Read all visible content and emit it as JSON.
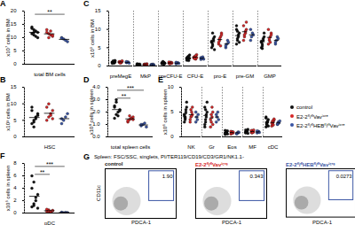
{
  "chart_data": [
    {
      "type": "strip",
      "panel": "A",
      "y_label": "x10⁷ cells in BM",
      "categories": [
        "total BM cells"
      ],
      "ylim": [
        0,
        20
      ],
      "yticks": [
        0,
        5,
        10,
        15,
        20
      ],
      "series": [
        {
          "name": "control",
          "color": "#111111",
          "values": [
            [
              14,
              13,
              12.5,
              12,
              11.5,
              11,
              10.5,
              10,
              13.5,
              12
            ]
          ]
        },
        {
          "name": "E2-2ᶠˡ/ᶠˡVavⁱᶜʳᵉ",
          "color": "#d62728",
          "values": [
            [
              12,
              11.5,
              11,
              10.5,
              13,
              10,
              12.5,
              11
            ]
          ]
        },
        {
          "name": "E2-2ᶠˡ/ᶠˡHEBᶠˡ/ᶠˡVavⁱᶜʳᵉ",
          "color": "#3a55a4",
          "values": [
            [
              10,
              9.5,
              9,
              8.5,
              9.8
            ]
          ]
        }
      ],
      "annotations": [
        {
          "text": "**",
          "groups": [
            "control",
            "E2-2ᶠˡ/ᶠˡHEBᶠˡ/ᶠˡVavⁱᶜʳᵉ"
          ]
        }
      ]
    },
    {
      "type": "strip",
      "panel": "B",
      "y_label": "x10³ cells in BM",
      "categories": [
        "HSC"
      ],
      "ylim": [
        0,
        15
      ],
      "yticks": [
        0,
        5,
        10,
        15
      ],
      "series": [
        {
          "name": "control",
          "color": "#111111",
          "values": [
            [
              4,
              5,
              6,
              7,
              8,
              3,
              5.5,
              6.5,
              9,
              4.5
            ]
          ]
        },
        {
          "name": "E2-2ᶠˡ/ᶠˡVavⁱᶜʳᵉ",
          "color": "#d62728",
          "values": [
            [
              5,
              6,
              7,
              8,
              9,
              10,
              6.5,
              5.5
            ]
          ]
        },
        {
          "name": "E2-2ᶠˡ/ᶠˡHEBᶠˡ/ᶠˡVavⁱᶜʳᵉ",
          "color": "#3a55a4",
          "values": [
            [
              4,
              5,
              6,
              7,
              5.5
            ]
          ]
        }
      ]
    },
    {
      "type": "strip",
      "panel": "F",
      "y_label": "x10⁵ cells in spleen",
      "categories": [
        "pDC"
      ],
      "ylim": [
        0,
        8
      ],
      "yticks": [
        0,
        2,
        4,
        6,
        8
      ],
      "series": [
        {
          "name": "control",
          "color": "#111111",
          "values": [
            [
              1,
              1.5,
              2,
              3,
              4,
              5,
              2.5,
              0.8,
              6,
              1.2
            ]
          ]
        },
        {
          "name": "E2-2ᶠˡ/ᶠˡVavⁱᶜʳᵉ",
          "color": "#d62728",
          "values": [
            [
              0.3,
              0.5,
              0.2,
              0.4,
              0.6,
              0.3,
              0.2,
              0.4
            ]
          ]
        },
        {
          "name": "E2-2ᶠˡ/ᶠˡHEBᶠˡ/ᶠˡVavⁱᶜʳᵉ",
          "color": "#3a55a4",
          "values": [
            [
              0.1,
              0.05,
              0.1,
              0.08,
              0.1
            ]
          ]
        }
      ],
      "annotations": [
        {
          "text": "***",
          "groups": [
            "control",
            "E2-2ᶠˡ/ᶠˡHEBᶠˡ/ᶠˡVavⁱᶜʳᵉ"
          ]
        },
        {
          "text": "**",
          "groups": [
            "control",
            "E2-2ᶠˡ/ᶠˡVavⁱᶜʳᵉ"
          ]
        }
      ]
    },
    {
      "type": "strip",
      "panel": "C",
      "y_label": "x10⁵ cells in BM",
      "categories": [
        "preMegE",
        "MkP",
        "preCFU-E",
        "CFU-E",
        "pro-E",
        "pre-GM",
        "GMP"
      ],
      "ylim": [
        0,
        15
      ],
      "yticks": [
        0,
        5,
        10,
        15
      ],
      "series": [
        {
          "name": "control",
          "color": "#111111",
          "values": [
            [
              1,
              1.2,
              0.8,
              1.5,
              1,
              0.9,
              1.3,
              1.1,
              0.7,
              1.4
            ],
            [
              0.3,
              0.4,
              0.5,
              0.3,
              0.6,
              0.4,
              0.2,
              0.5,
              0.3,
              0.4
            ],
            [
              0.6,
              0.8,
              1,
              0.7,
              0.9,
              1.2,
              0.5,
              0.8,
              0.7,
              1.1
            ],
            [
              2,
              2.5,
              1.5,
              3,
              2.2,
              1.8,
              2.7,
              2.1,
              1.6,
              2.4
            ],
            [
              5,
              6,
              7,
              8,
              6.5,
              5.5,
              7.5,
              4.5,
              6.8,
              9
            ],
            [
              6,
              7,
              8,
              9,
              10,
              7.5,
              8.5,
              6.5,
              11,
              9.5
            ],
            [
              5,
              6,
              7,
              8,
              6.5,
              5.5,
              7.5,
              9,
              6.8,
              4.8
            ]
          ]
        },
        {
          "name": "E2-2ᶠˡ/ᶠˡVavⁱᶜʳᵉ",
          "color": "#d62728",
          "values": [
            [
              1,
              1.1,
              0.9,
              1.3,
              1.2,
              0.8,
              1,
              1.4
            ],
            [
              0.4,
              0.5,
              0.3,
              0.6,
              0.4,
              0.5,
              0.3,
              0.4
            ],
            [
              0.7,
              0.9,
              1,
              0.8,
              1.1,
              0.6,
              0.8,
              0.9
            ],
            [
              2.2,
              2.6,
              1.9,
              3.1,
              2.4,
              2,
              2.8,
              2.3
            ],
            [
              6,
              7,
              8,
              9,
              6.5,
              7.5,
              5.5,
              8.5
            ],
            [
              7,
              8,
              9,
              10,
              11,
              8.5,
              9.5,
              12
            ],
            [
              6,
              7,
              8,
              9,
              10,
              7.5,
              6.5,
              8.5
            ]
          ]
        },
        {
          "name": "E2-2ᶠˡ/ᶠˡHEBᶠˡ/ᶠˡVavⁱᶜʳᵉ",
          "color": "#3a55a4",
          "values": [
            [
              0.9,
              1,
              1.1,
              0.8,
              1.2
            ],
            [
              0.3,
              0.4,
              0.5,
              0.3,
              0.4
            ],
            [
              0.6,
              0.8,
              0.9,
              0.7,
              1
            ],
            [
              1.8,
              2.1,
              2.5,
              1.9,
              2.3
            ],
            [
              5,
              6,
              7,
              6.5,
              5.5
            ],
            [
              7,
              8,
              9,
              8.5,
              10
            ],
            [
              6,
              7,
              8,
              7.5,
              6.5
            ]
          ]
        }
      ]
    },
    {
      "type": "strip",
      "panel": "D",
      "y_label": "x10⁸ cells in spleen",
      "categories": [
        "total spleen cells"
      ],
      "ylim": [
        0,
        4
      ],
      "yticks": [
        0,
        1,
        2,
        3,
        4
      ],
      "series": [
        {
          "name": "control",
          "color": "#111111",
          "values": [
            [
              1.5,
              1.8,
              2,
              2.2,
              2.5,
              2.8,
              1.7,
              2.1,
              2.4,
              3
            ]
          ]
        },
        {
          "name": "E2-2ᶠˡ/ᶠˡVavⁱᶜʳᵉ",
          "color": "#d62728",
          "values": [
            [
              1.2,
              1.4,
              1.5,
              1.6,
              1.3,
              1.7,
              1.5,
              1.4
            ]
          ]
        },
        {
          "name": "E2-2ᶠˡ/ᶠˡHEBᶠˡ/ᶠˡVavⁱᶜʳᵉ",
          "color": "#3a55a4",
          "values": [
            [
              0.9,
              1,
              1.1,
              0.8,
              1
            ]
          ]
        }
      ],
      "annotations": [
        {
          "text": "***",
          "groups": [
            "control",
            "E2-2ᶠˡ/ᶠˡHEBᶠˡ/ᶠˡVavⁱᶜʳᵉ"
          ]
        },
        {
          "text": "**",
          "groups": [
            "control",
            "E2-2ᶠˡ/ᶠˡVavⁱᶜʳᵉ"
          ]
        }
      ]
    },
    {
      "type": "strip",
      "panel": "E",
      "y_label": "x10⁶ cells in spleen",
      "legend": "right",
      "categories": [
        "NK",
        "Gr",
        "Eos",
        "MF",
        "cDC"
      ],
      "ylim": [
        0,
        10
      ],
      "yticks": [
        0,
        5,
        10
      ],
      "series": [
        {
          "name": "control",
          "color": "#111111",
          "values": [
            [
              3,
              4,
              5,
              6,
              4.5,
              3.5,
              5.5,
              7,
              4.2,
              3.8
            ],
            [
              2,
              3,
              4,
              5,
              6,
              3.5,
              4.5,
              7,
              2.5,
              5.5
            ],
            [
              0.5,
              0.8,
              1,
              1.2,
              0.7,
              0.9,
              1.1,
              0.6,
              1.3,
              0.8
            ],
            [
              0.8,
              1,
              1.2,
              1.5,
              0.9,
              1.1,
              1.3,
              0.7,
              1.4,
              1
            ],
            [
              2,
              2.5,
              3,
              3.5,
              4,
              2.8,
              3.2,
              2.2,
              3.8,
              2.6
            ]
          ]
        },
        {
          "name": "E2-2ᶠˡ/ᶠˡVavⁱᶜʳᵉ",
          "color": "#d62728",
          "values": [
            [
              3,
              4,
              5,
              4.5,
              3.5,
              5.5,
              4.2,
              6
            ],
            [
              2,
              3,
              4,
              5,
              3.5,
              4.5,
              6,
              2.5
            ],
            [
              0.6,
              0.9,
              1,
              0.8,
              1.1,
              0.7,
              0.9,
              1
            ],
            [
              0.9,
              1.1,
              1.2,
              1,
              1.3,
              0.8,
              1,
              1.4
            ],
            [
              2.2,
              2.6,
              3,
              3.4,
              2.8,
              3.2,
              2.4,
              3.6
            ]
          ]
        },
        {
          "name": "E2-2ᶠˡ/ᶠˡHEBᶠˡ/ᶠˡVavⁱᶜʳᵉ",
          "color": "#3a55a4",
          "values": [
            [
              3,
              4,
              3.5,
              4.5,
              5
            ],
            [
              3,
              4,
              5,
              3.5,
              4.5
            ],
            [
              0.7,
              0.8,
              1,
              0.9,
              0.6
            ],
            [
              0.8,
              1,
              1.1,
              0.9,
              1.2
            ],
            [
              2.5,
              3,
              2.8,
              3.2,
              2.6
            ]
          ]
        }
      ]
    },
    {
      "type": "flow",
      "panel": "G",
      "title": "Spleen: FSC/SSC, singlets, PI/TER119/CD19/CD3/GR1/NK1.1-",
      "x_label": "PDCA-1",
      "y_label": "CD11c",
      "tick_labels": false,
      "data_labels": true,
      "series": [
        {
          "name": "control",
          "color": "#111111",
          "values": [
            1.9
          ],
          "value_labels": [
            "1.90"
          ]
        },
        {
          "name": "E2-2ᶠˡ/ᶠˡVavⁱᶜʳᵉ",
          "color": "#d62728",
          "values": [
            0.343
          ],
          "value_labels": [
            "0.343"
          ]
        },
        {
          "name": "E2-2ᶠˡ/ᶠˡHEBᶠˡ/ᶠˡVavⁱᶜʳᵉ",
          "color": "#3a55a4",
          "values": [
            0.0273
          ],
          "value_labels": [
            "0.0273"
          ]
        }
      ]
    }
  ]
}
